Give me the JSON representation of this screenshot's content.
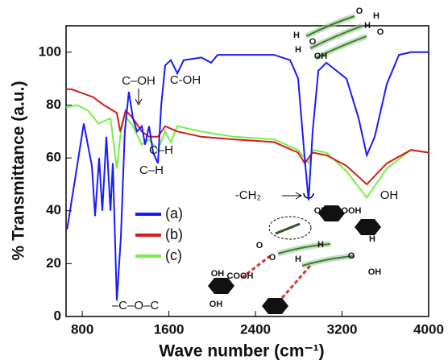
{
  "chart_data": {
    "type": "line",
    "x_label": "Wave number (cm⁻¹)",
    "y_label": "% Transmittance (a.u.)",
    "xlim": [
      650,
      4000
    ],
    "xticks": [
      800,
      1600,
      2400,
      3200,
      4000
    ],
    "ylim": [
      0,
      110
    ],
    "yticks": [
      0,
      20,
      40,
      60,
      80,
      100
    ],
    "series": [
      {
        "name": "(a)",
        "color": "#1a1aff",
        "x": [
          660,
          814,
          888,
          918,
          955,
          985,
          1022,
          1060,
          1082,
          1119,
          1156,
          1193,
          1230,
          1268,
          1305,
          1350,
          1380,
          1417,
          1454,
          1499,
          1529,
          1566,
          1618,
          1678,
          1737,
          1901,
          1990,
          2050,
          2571,
          2720,
          2794,
          2854,
          2891,
          2928,
          2981,
          3055,
          3241,
          3353,
          3428,
          3502,
          3614,
          3725,
          3837,
          4000
        ],
        "values": [
          33,
          73,
          57,
          38,
          60,
          40,
          68,
          40,
          58,
          6,
          30,
          70,
          85,
          75,
          70,
          72,
          65,
          72,
          62,
          58,
          80,
          95,
          97,
          92,
          97,
          98,
          96,
          99,
          99,
          97,
          90,
          60,
          44,
          70,
          93,
          96,
          90,
          75,
          61,
          68,
          88,
          99,
          100,
          100
        ]
      },
      {
        "name": "(b)",
        "color": "#d41c1c",
        "x": [
          650,
          700,
          900,
          1000,
          1119,
          1150,
          1200,
          1268,
          1350,
          1417,
          1499,
          1566,
          1678,
          1900,
          2200,
          2571,
          2794,
          2854,
          2928,
          3055,
          3241,
          3428,
          3614,
          3837,
          4000
        ],
        "values": [
          86,
          86,
          83,
          80,
          77,
          70,
          78,
          75,
          70,
          68,
          68,
          72,
          70,
          68,
          67,
          66,
          62,
          58,
          62,
          61,
          57,
          50,
          58,
          63,
          62
        ]
      },
      {
        "name": "(c)",
        "color": "#77ee44",
        "x": [
          650,
          750,
          850,
          950,
          1060,
          1119,
          1156,
          1193,
          1268,
          1350,
          1417,
          1499,
          1566,
          1618,
          1678,
          1900,
          2200,
          2571,
          2794,
          2891,
          2928,
          3055,
          3241,
          3428,
          3614,
          3837,
          4000
        ],
        "values": [
          79,
          80,
          78,
          73,
          75,
          56,
          70,
          76,
          72,
          65,
          67,
          63,
          70,
          66,
          72,
          70,
          68,
          67,
          63,
          58,
          63,
          62,
          55,
          45,
          56,
          63,
          62
        ]
      }
    ],
    "annotations": [
      "C–OH",
      "C-OH",
      "C–H",
      "C–H",
      "–C–O–C",
      "-CH₂",
      "OH"
    ],
    "molecule_labels": [
      "O",
      "H",
      "H",
      "O",
      "H",
      "O",
      "H",
      "OH",
      "OH",
      "COOH",
      "H",
      "O",
      "O",
      "H",
      "H",
      "O",
      "OH",
      "OH",
      "COOH",
      "OH"
    ]
  }
}
